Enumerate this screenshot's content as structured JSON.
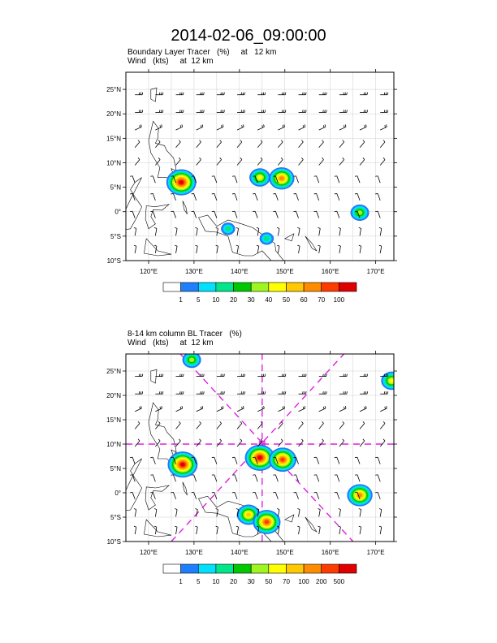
{
  "title": "2014-02-06_09:00:00",
  "panels": [
    {
      "label_line1": "Boundary Layer Tracer   (%)     at   12 km",
      "label_line2": "Wind   (kts)     at  12 km",
      "lat_ticks": [
        "25°N",
        "20°N",
        "15°N",
        "10°N",
        "5°N",
        "0°",
        "5°S",
        "10°S"
      ],
      "lon_ticks": [
        "120°E",
        "130°E",
        "140°E",
        "150°E",
        "160°E",
        "170°E"
      ],
      "colorbar_labels": [
        "1",
        "5",
        "10",
        "20",
        "30",
        "40",
        "50",
        "60",
        "70",
        "100"
      ]
    },
    {
      "label_line1": "8-14 km column BL Tracer   (%)",
      "label_line2": "Wind   (kts)     at  12 km",
      "lat_ticks": [
        "25°N",
        "20°N",
        "15°N",
        "10°N",
        "5°N",
        "0°",
        "5°S",
        "10°S"
      ],
      "lon_ticks": [
        "120°E",
        "130°E",
        "140°E",
        "150°E",
        "160°E",
        "170°E"
      ],
      "colorbar_labels": [
        "1",
        "5",
        "10",
        "20",
        "30",
        "50",
        "70",
        "100",
        "200",
        "500"
      ]
    }
  ],
  "colors": {
    "scale": [
      "#ffffff",
      "#1e7fff",
      "#00e0ff",
      "#00e68a",
      "#00c800",
      "#9ff520",
      "#ffff00",
      "#ffc800",
      "#ff8c00",
      "#ff3c00",
      "#e00000"
    ],
    "cross_lines": "#e020e0",
    "coast": "#000000"
  },
  "chart_data": [
    {
      "type": "heatmap",
      "title": "Boundary Layer Tracer (%) at 12 km",
      "xlim": [
        115,
        174
      ],
      "ylim": [
        -10,
        28.5
      ],
      "xticks": [
        120,
        130,
        140,
        150,
        160,
        170
      ],
      "yticks": [
        25,
        20,
        15,
        10,
        5,
        0,
        -5,
        -10
      ],
      "levels": [
        1,
        5,
        10,
        20,
        30,
        40,
        50,
        60,
        70,
        100
      ],
      "features": [
        {
          "lon": 127.2,
          "lat": 6.0,
          "peak": 100
        },
        {
          "lon": 144.5,
          "lat": 7.0,
          "peak": 40
        },
        {
          "lon": 149.3,
          "lat": 6.8,
          "peak": 60
        },
        {
          "lon": 166.5,
          "lat": -0.2,
          "peak": 30
        },
        {
          "lon": 137.5,
          "lat": -3.5,
          "peak": 10
        },
        {
          "lon": 146.0,
          "lat": -5.5,
          "peak": 10
        }
      ]
    },
    {
      "type": "heatmap",
      "title": "8-14 km column BL Tracer (%)",
      "xlim": [
        115,
        174
      ],
      "ylim": [
        -10,
        28.5
      ],
      "xticks": [
        120,
        130,
        140,
        150,
        160,
        170
      ],
      "yticks": [
        25,
        20,
        15,
        10,
        5,
        0,
        -5,
        -10
      ],
      "levels": [
        1,
        5,
        10,
        20,
        30,
        50,
        70,
        100,
        200,
        500
      ],
      "features": [
        {
          "lon": 127.5,
          "lat": 5.8,
          "peak": 500
        },
        {
          "lon": 144.5,
          "lat": 7.2,
          "peak": 500
        },
        {
          "lon": 149.5,
          "lat": 6.8,
          "peak": 200
        },
        {
          "lon": 166.5,
          "lat": -0.5,
          "peak": 100
        },
        {
          "lon": 129.5,
          "lat": 27.3,
          "peak": 30
        },
        {
          "lon": 173.5,
          "lat": 23.0,
          "peak": 50
        },
        {
          "lon": 142.0,
          "lat": -4.5,
          "peak": 70
        },
        {
          "lon": 146.0,
          "lat": -6.0,
          "peak": 200
        }
      ]
    }
  ]
}
